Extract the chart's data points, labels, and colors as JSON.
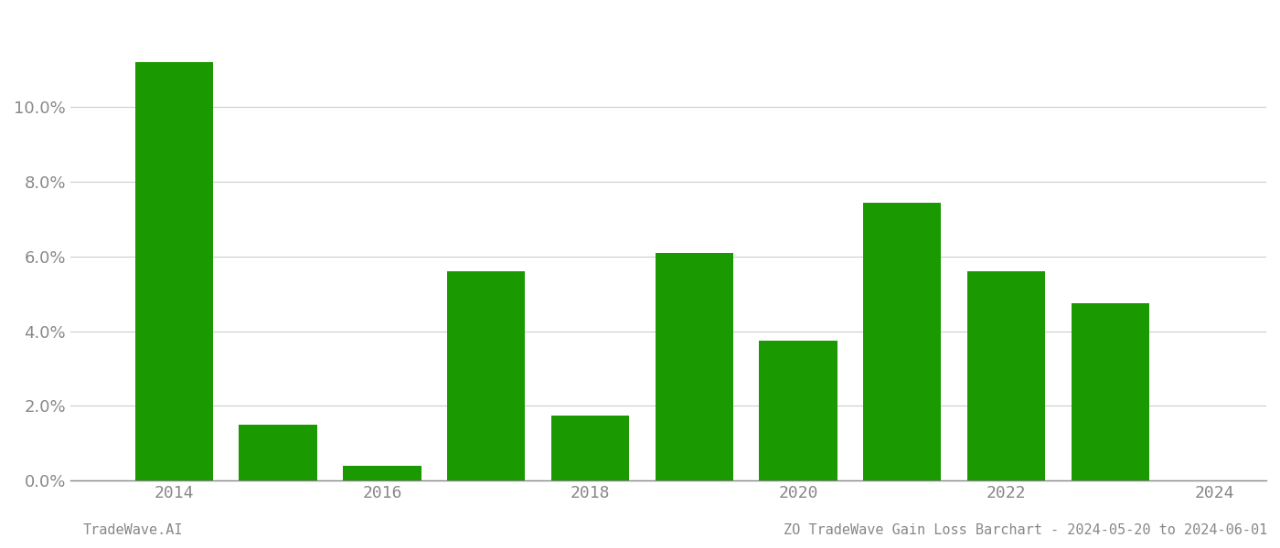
{
  "years": [
    2014,
    2015,
    2016,
    2017,
    2018,
    2019,
    2020,
    2021,
    2022,
    2023
  ],
  "values": [
    0.112,
    0.015,
    0.004,
    0.056,
    0.0175,
    0.061,
    0.0375,
    0.0745,
    0.056,
    0.0475
  ],
  "bar_color": "#1a9a00",
  "background_color": "#ffffff",
  "ylabel_ticks": [
    0.0,
    0.02,
    0.04,
    0.06,
    0.08,
    0.1
  ],
  "xlim": [
    2013.0,
    2024.5
  ],
  "ylim": [
    0.0,
    0.125
  ],
  "xlabel_ticks": [
    2014,
    2016,
    2018,
    2020,
    2022,
    2024
  ],
  "footer_left": "TradeWave.AI",
  "footer_right": "ZO TradeWave Gain Loss Barchart - 2024-05-20 to 2024-06-01",
  "bar_width": 0.75,
  "grid_color": "#cccccc",
  "font_color": "#888888",
  "font_size_ticks": 13,
  "font_size_footer": 11
}
